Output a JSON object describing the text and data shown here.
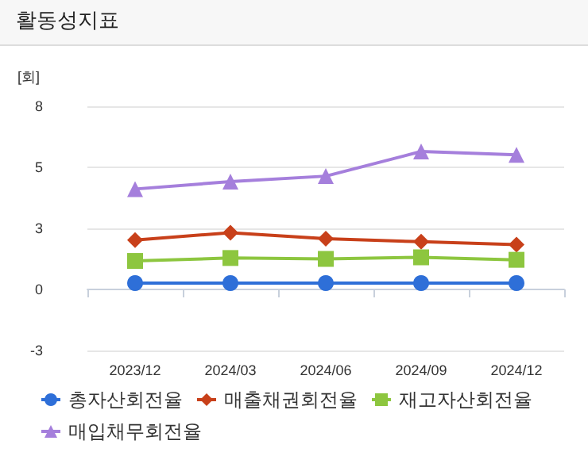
{
  "chart_data": {
    "type": "line",
    "title": "활동성지표",
    "ylabel": "[회]",
    "categories": [
      "2023/12",
      "2024/03",
      "2024/06",
      "2024/09",
      "2024/12"
    ],
    "series": [
      {
        "name": "총자산회전율",
        "color": "#2e6fd8",
        "marker": "circle",
        "values": [
          0.28,
          0.28,
          0.28,
          0.28,
          0.28
        ]
      },
      {
        "name": "매출채권회전율",
        "color": "#c8401a",
        "marker": "diamond",
        "values": [
          2.18,
          2.51,
          2.24,
          2.11,
          1.98
        ]
      },
      {
        "name": "재고자산회전율",
        "color": "#8dc63f",
        "marker": "square",
        "values": [
          1.26,
          1.39,
          1.35,
          1.42,
          1.31
        ]
      },
      {
        "name": "매입채무회전율",
        "color": "#a57fdc",
        "marker": "triangle",
        "values": [
          4.44,
          4.77,
          5.01,
          6.1,
          5.95
        ]
      }
    ],
    "ylim": [
      -2.7,
      8.1
    ],
    "yticks": [
      {
        "value": -2.7,
        "label": "-3"
      },
      0,
      {
        "value": 2.7,
        "label": "3"
      },
      {
        "value": 5.4,
        "label": "5"
      },
      {
        "value": 8.1,
        "label": "8"
      }
    ],
    "grid": "y",
    "legend": "bottom"
  }
}
